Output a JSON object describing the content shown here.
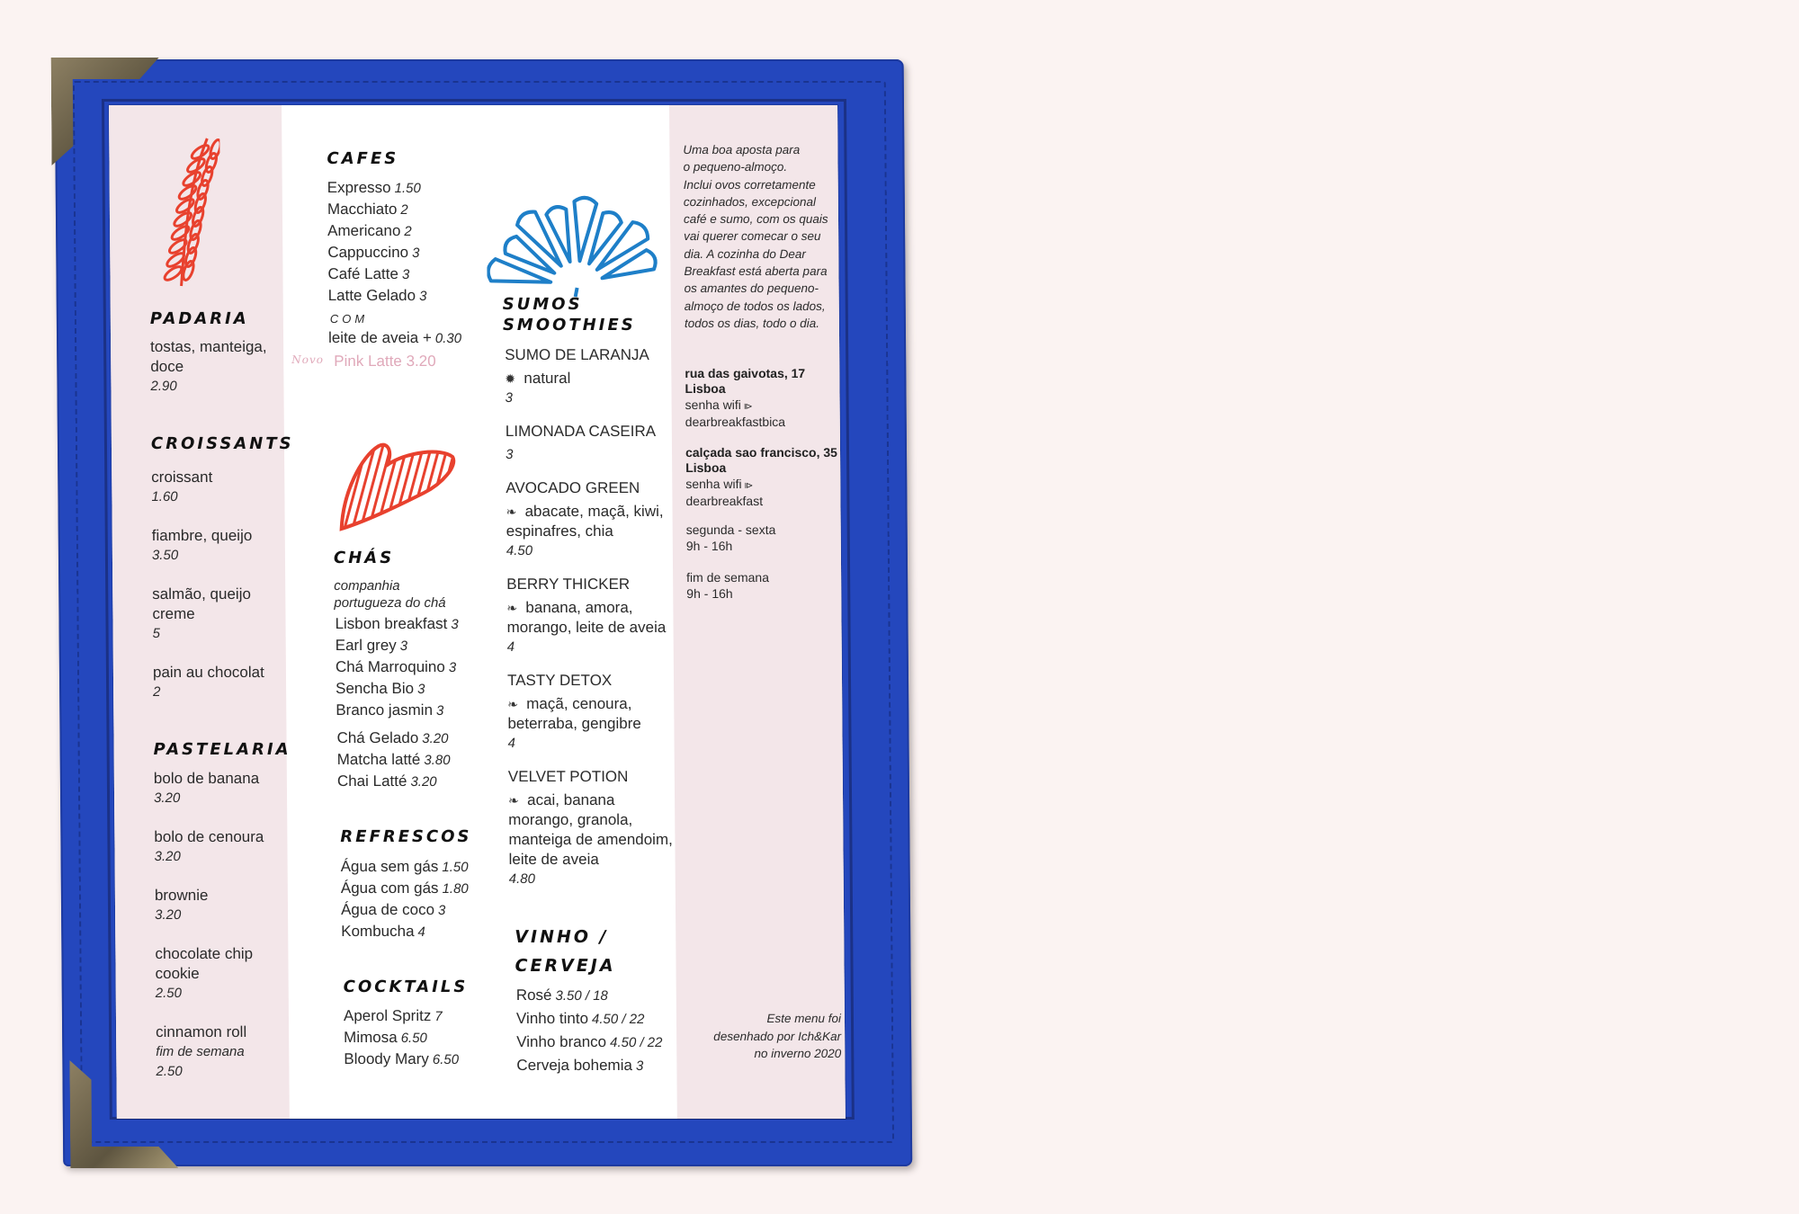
{
  "colors": {
    "cover": "#2447bd",
    "paper_pink": "#f3e6e9",
    "illustration_red": "#e8412e",
    "illustration_blue": "#1e7fc8",
    "new_item_pink": "#e0a9ba",
    "background": "#fbf3f2"
  },
  "menu": {
    "padaria": {
      "title": "PADARIA",
      "items": [
        {
          "name": [
            "tostas, manteiga,",
            "doce"
          ],
          "price": "2.90"
        }
      ]
    },
    "croissants": {
      "title": "CROISSANTS",
      "items": [
        {
          "name": [
            "croissant"
          ],
          "price": "1.60"
        },
        {
          "name": [
            "fiambre, queijo"
          ],
          "price": "3.50"
        },
        {
          "name": [
            "salmão, queijo",
            "creme"
          ],
          "price": "5"
        },
        {
          "name": [
            "pain au chocolat"
          ],
          "price": "2"
        }
      ]
    },
    "pastelaria": {
      "title": "PASTELARIA",
      "items": [
        {
          "name": [
            "bolo de banana"
          ],
          "price": "3.20"
        },
        {
          "name": [
            "bolo de cenoura"
          ],
          "price": "3.20"
        },
        {
          "name": [
            "brownie"
          ],
          "price": "3.20"
        },
        {
          "name": [
            "chocolate chip",
            "cookie"
          ],
          "price": "2.50"
        },
        {
          "name": [
            "cinnamon roll"
          ],
          "note": "fim de semana",
          "price": "2.50"
        }
      ]
    },
    "cafes": {
      "title": "CAFES",
      "items": [
        {
          "name": "Expresso",
          "price": "1.50"
        },
        {
          "name": "Macchiato",
          "price": "2"
        },
        {
          "name": "Americano",
          "price": "2"
        },
        {
          "name": "Cappuccino",
          "price": "3"
        },
        {
          "name": "Café Latte",
          "price": "3"
        },
        {
          "name": "Latte Gelado",
          "price": "3"
        }
      ],
      "com_label": "COM",
      "addon": {
        "name": "leite de aveia +",
        "price": "0.30"
      },
      "new_label": "Novo",
      "new_item": "Pink Latte 3.20"
    },
    "chas": {
      "title": "CHÁS",
      "brand": [
        "companhia",
        "portugueza do chá"
      ],
      "items": [
        {
          "name": "Lisbon breakfast",
          "price": "3"
        },
        {
          "name": "Earl grey",
          "price": "3"
        },
        {
          "name": "Chá Marroquino",
          "price": "3"
        },
        {
          "name": "Sencha Bio",
          "price": "3"
        },
        {
          "name": "Branco jasmin",
          "price": "3"
        }
      ],
      "items2": [
        {
          "name": "Chá Gelado",
          "price": "3.20"
        },
        {
          "name": "Matcha latté",
          "price": "3.80"
        },
        {
          "name": "Chai Latté",
          "price": "3.20"
        }
      ]
    },
    "refrescos": {
      "title": "REFRESCOS",
      "items": [
        {
          "name": "Água sem gás",
          "price": "1.50"
        },
        {
          "name": "Água com gás",
          "price": "1.80"
        },
        {
          "name": "Água de coco",
          "price": "3"
        },
        {
          "name": "Kombucha",
          "price": "4"
        }
      ]
    },
    "cocktails": {
      "title": "COCKTAILS",
      "items": [
        {
          "name": "Aperol Spritz",
          "price": "7"
        },
        {
          "name": "Mimosa",
          "price": "6.50"
        },
        {
          "name": "Bloody Mary",
          "price": "6.50"
        }
      ]
    },
    "sumos": {
      "title": [
        "SUMOS",
        "SMOOTHIES"
      ],
      "items": [
        {
          "name": "SUMO DE LARANJA",
          "icon": "sun-icon",
          "desc": [
            "natural"
          ],
          "price": "3"
        },
        {
          "name": "LIMONADA CASEIRA",
          "desc": [],
          "price": "3"
        },
        {
          "name": "AVOCADO GREEN",
          "icon": "leaf-icon",
          "desc": [
            "abacate, maçã, kiwi,",
            "espinafres, chia"
          ],
          "price": "4.50"
        },
        {
          "name": "BERRY THICKER",
          "icon": "leaf-icon",
          "desc": [
            "banana, amora,",
            "morango, leite de aveia"
          ],
          "price": "4"
        },
        {
          "name": "TASTY DETOX",
          "icon": "leaf-icon",
          "desc": [
            "maçã, cenoura,",
            "beterraba, gengibre"
          ],
          "price": "4"
        },
        {
          "name": "VELVET POTION",
          "icon": "leaf-icon",
          "desc": [
            "acai, banana",
            "morango, granola,",
            "manteiga de amendoim,",
            "leite de aveia"
          ],
          "price": "4.80"
        }
      ]
    },
    "vinho": {
      "title": [
        "VINHO /",
        "CERVEJA"
      ],
      "items": [
        {
          "name": "Rosé",
          "price": "3.50 / 18"
        },
        {
          "name": "Vinho tinto",
          "price": "4.50 / 22"
        },
        {
          "name": "Vinho branco",
          "price": "4.50 / 22"
        },
        {
          "name": "Cerveja bohemia",
          "price": "3"
        }
      ]
    }
  },
  "info": {
    "intro": [
      "Uma boa aposta para",
      "o pequeno-almoço.",
      "Inclui ovos corretamente",
      "cozinhados, excepcional",
      "café e sumo, com os quais",
      "vai querer comecar o seu",
      "dia. A cozinha do Dear",
      "Breakfast está aberta para",
      "os amantes do pequeno-",
      "almoço de todos os lados,",
      "todos os dias, todo o dia."
    ],
    "locations": [
      {
        "address": "rua das gaivotas, 17",
        "city": "Lisboa",
        "wifi_label": "senha wifi",
        "wifi_password": "dearbreakfastbica"
      },
      {
        "address": "calçada sao francisco, 35",
        "city": "Lisboa",
        "wifi_label": "senha wifi",
        "wifi_password": "dearbreakfast"
      }
    ],
    "hours": [
      {
        "days": "segunda - sexta",
        "time": "9h - 16h"
      },
      {
        "days": "fim de semana",
        "time": "9h - 16h"
      }
    ],
    "credit": [
      "Este menu foi",
      "desenhado por Ich&Kar",
      "no inverno 2020"
    ]
  }
}
